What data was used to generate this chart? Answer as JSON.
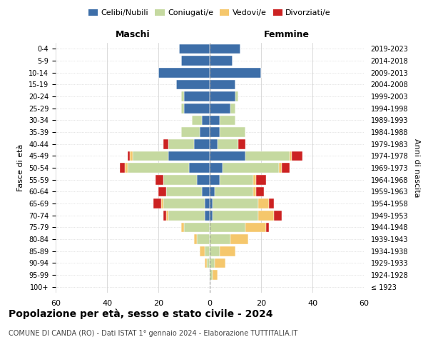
{
  "age_groups": [
    "100+",
    "95-99",
    "90-94",
    "85-89",
    "80-84",
    "75-79",
    "70-74",
    "65-69",
    "60-64",
    "55-59",
    "50-54",
    "45-49",
    "40-44",
    "35-39",
    "30-34",
    "25-29",
    "20-24",
    "15-19",
    "10-14",
    "5-9",
    "0-4"
  ],
  "birth_years": [
    "≤ 1923",
    "1924-1928",
    "1929-1933",
    "1934-1938",
    "1939-1943",
    "1944-1948",
    "1949-1953",
    "1954-1958",
    "1959-1963",
    "1964-1968",
    "1969-1973",
    "1974-1978",
    "1979-1983",
    "1984-1988",
    "1989-1993",
    "1994-1998",
    "1999-2003",
    "2004-2008",
    "2009-2013",
    "2014-2018",
    "2019-2023"
  ],
  "male": {
    "celibi": [
      0,
      0,
      0,
      0,
      0,
      0,
      2,
      2,
      3,
      5,
      8,
      16,
      6,
      4,
      3,
      10,
      10,
      13,
      20,
      11,
      12
    ],
    "coniugati": [
      0,
      0,
      1,
      2,
      5,
      10,
      14,
      16,
      14,
      13,
      24,
      14,
      10,
      7,
      4,
      1,
      1,
      0,
      0,
      0,
      0
    ],
    "vedovi": [
      0,
      0,
      1,
      2,
      1,
      1,
      1,
      1,
      0,
      0,
      1,
      1,
      0,
      0,
      0,
      0,
      0,
      0,
      0,
      0,
      0
    ],
    "divorziati": [
      0,
      0,
      0,
      0,
      0,
      0,
      1,
      3,
      3,
      3,
      2,
      1,
      2,
      0,
      0,
      0,
      0,
      0,
      0,
      0,
      0
    ]
  },
  "female": {
    "nubili": [
      0,
      0,
      0,
      0,
      0,
      0,
      1,
      1,
      2,
      4,
      5,
      14,
      3,
      4,
      4,
      8,
      10,
      10,
      20,
      9,
      12
    ],
    "coniugate": [
      0,
      1,
      2,
      4,
      8,
      14,
      18,
      18,
      15,
      13,
      22,
      17,
      8,
      10,
      6,
      2,
      1,
      0,
      0,
      0,
      0
    ],
    "vedove": [
      0,
      2,
      4,
      6,
      7,
      8,
      6,
      4,
      1,
      1,
      1,
      1,
      0,
      0,
      0,
      0,
      0,
      0,
      0,
      0,
      0
    ],
    "divorziate": [
      0,
      0,
      0,
      0,
      0,
      1,
      3,
      2,
      3,
      4,
      3,
      4,
      3,
      0,
      0,
      0,
      0,
      0,
      0,
      0,
      0
    ]
  },
  "colors": {
    "celibi": "#3d6ea8",
    "coniugati": "#c5d9a0",
    "vedovi": "#f5c76c",
    "divorziati": "#cc2222"
  },
  "xlim": 60,
  "title": "Popolazione per età, sesso e stato civile - 2024",
  "subtitle": "COMUNE DI CANDA (RO) - Dati ISTAT 1° gennaio 2024 - Elaborazione TUTTITALIA.IT",
  "label_maschi": "Maschi",
  "label_femmine": "Femmine",
  "ylabel_left": "Fasce di età",
  "ylabel_right": "Anni di nascita",
  "legend_labels": [
    "Celibi/Nubili",
    "Coniugati/e",
    "Vedovi/e",
    "Divorziati/e"
  ]
}
